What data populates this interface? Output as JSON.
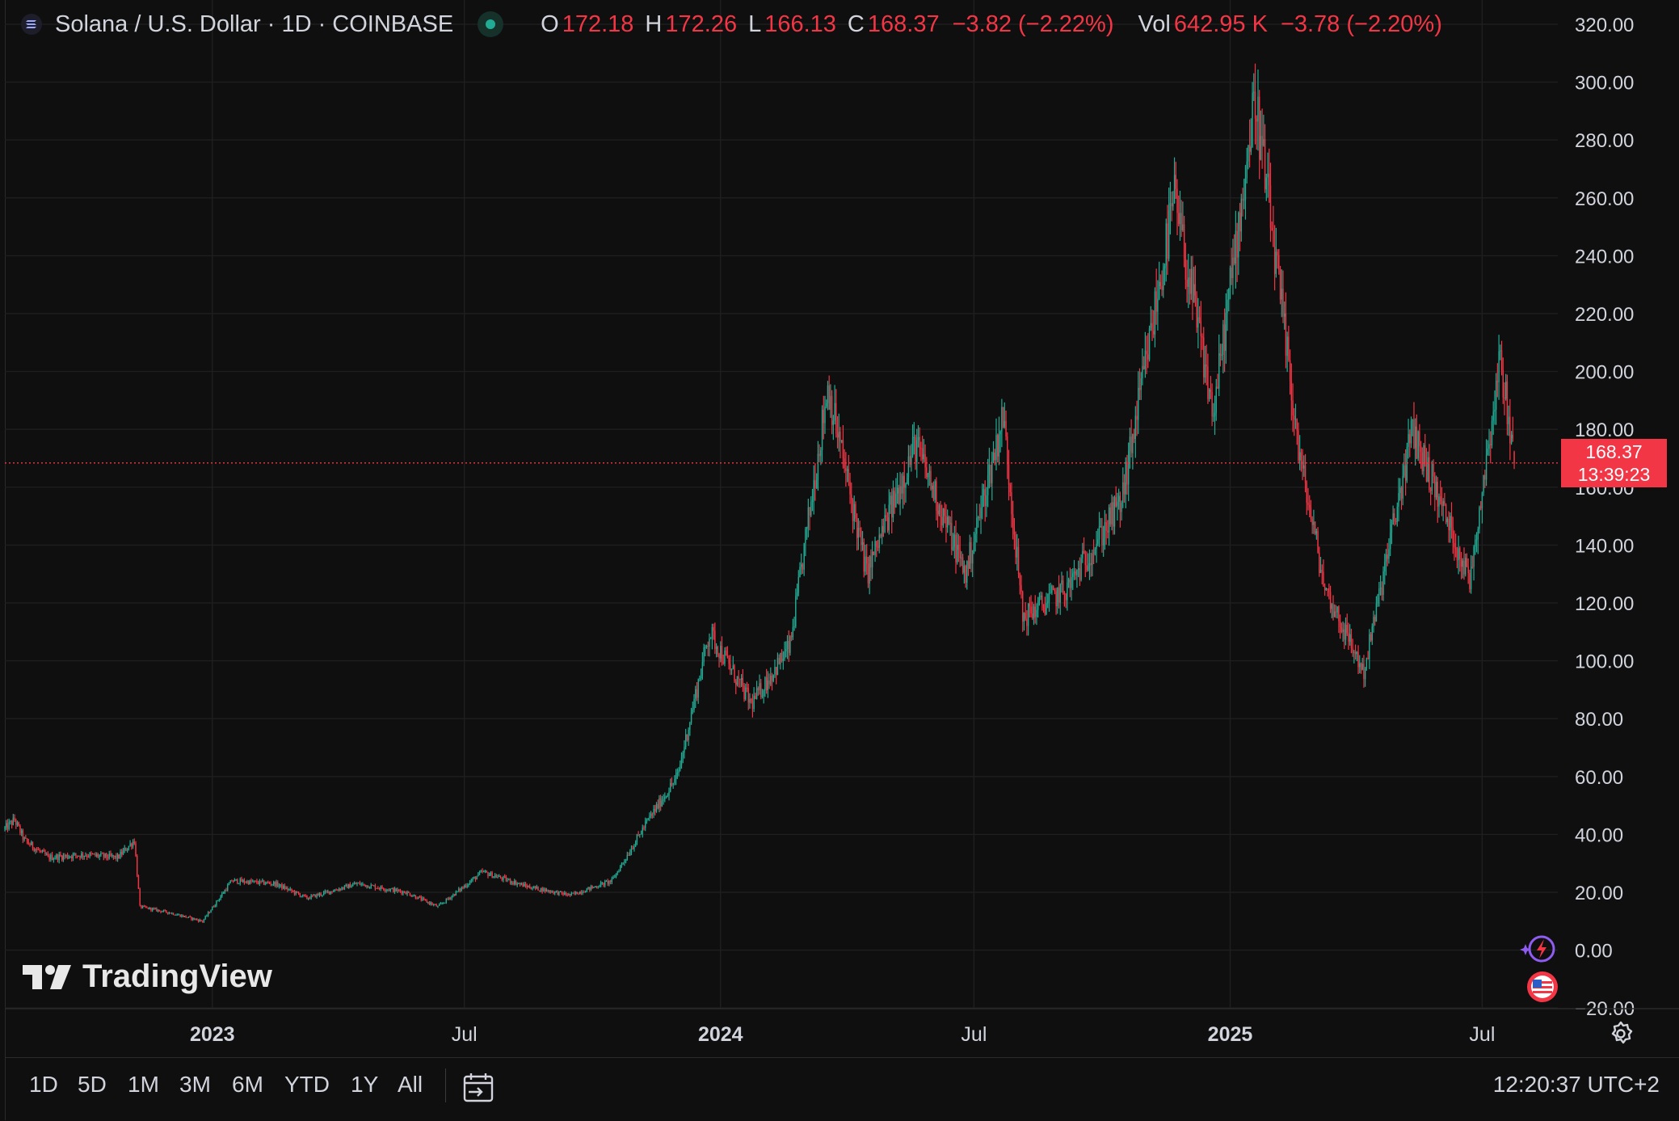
{
  "header": {
    "symbol": "Solana / U.S. Dollar · 1D · COINBASE",
    "o_label": "O",
    "o_value": "172.18",
    "h_label": "H",
    "h_value": "172.26",
    "l_label": "L",
    "l_value": "166.13",
    "c_label": "C",
    "c_value": "168.37",
    "change": "−3.82 (−2.22%)",
    "vol_label": "Vol",
    "vol_value": "642.95 K",
    "vol_change": "−3.78 (−2.20%)"
  },
  "price_label": {
    "price": "168.37",
    "countdown": "13:39:23"
  },
  "logo_text": "TradingView",
  "range_buttons": [
    "1D",
    "5D",
    "1M",
    "3M",
    "6M",
    "YTD",
    "1Y",
    "All"
  ],
  "clock": "12:20:37 UTC+2",
  "colors": {
    "up": "#22ab94",
    "down": "#f23645",
    "background": "#0f0f0f",
    "grid": "#1f1f1f"
  },
  "icons": [
    "solana-icon",
    "status-dot-icon",
    "settings-icon",
    "date-range-icon",
    "lightning-icon",
    "us-flag-icon"
  ],
  "chart_data": {
    "type": "candlestick",
    "title": "Solana / U.S. Dollar · 1D · COINBASE",
    "y_ticks": [
      "320.00",
      "300.00",
      "280.00",
      "260.00",
      "240.00",
      "220.00",
      "200.00",
      "180.00",
      "160.00",
      "140.00",
      "120.00",
      "100.00",
      "80.00",
      "60.00",
      "40.00",
      "20.00",
      "0.00",
      "−20.00"
    ],
    "ylim": [
      -20,
      320
    ],
    "x_ticks": [
      "2023",
      "Jul",
      "2024",
      "Jul",
      "2025",
      "Jul"
    ],
    "xlim": [
      "2022-08-05",
      "2025-07-24"
    ],
    "last_close": 168.37,
    "grid": true,
    "series": [
      {
        "name": "SOL/USD",
        "approx_path": [
          [
            "2022-08-05",
            42
          ],
          [
            "2022-08-12",
            45
          ],
          [
            "2022-08-19",
            38
          ],
          [
            "2022-09-05",
            32
          ],
          [
            "2022-10-01",
            33
          ],
          [
            "2022-10-25",
            32
          ],
          [
            "2022-11-06",
            38
          ],
          [
            "2022-11-10",
            15
          ],
          [
            "2022-12-01",
            13
          ],
          [
            "2022-12-25",
            10
          ],
          [
            "2023-01-15",
            24
          ],
          [
            "2023-02-15",
            23
          ],
          [
            "2023-03-10",
            18
          ],
          [
            "2023-04-15",
            23
          ],
          [
            "2023-05-20",
            20
          ],
          [
            "2023-06-12",
            15
          ],
          [
            "2023-07-14",
            27
          ],
          [
            "2023-08-15",
            22
          ],
          [
            "2023-09-15",
            19
          ],
          [
            "2023-10-15",
            24
          ],
          [
            "2023-11-10",
            45
          ],
          [
            "2023-12-01",
            60
          ],
          [
            "2023-12-24",
            110
          ],
          [
            "2024-01-23",
            85
          ],
          [
            "2024-02-20",
            105
          ],
          [
            "2024-03-18",
            195
          ],
          [
            "2024-04-15",
            130
          ],
          [
            "2024-05-20",
            175
          ],
          [
            "2024-06-25",
            130
          ],
          [
            "2024-07-22",
            185
          ],
          [
            "2024-08-05",
            115
          ],
          [
            "2024-09-06",
            125
          ],
          [
            "2024-10-15",
            155
          ],
          [
            "2024-11-22",
            260
          ],
          [
            "2024-12-20",
            185
          ],
          [
            "2025-01-19",
            295
          ],
          [
            "2025-02-20",
            170
          ],
          [
            "2025-03-10",
            125
          ],
          [
            "2025-04-07",
            96
          ],
          [
            "2025-05-12",
            180
          ],
          [
            "2025-06-22",
            128
          ],
          [
            "2025-07-14",
            205
          ],
          [
            "2025-07-24",
            168.37
          ]
        ]
      }
    ]
  }
}
